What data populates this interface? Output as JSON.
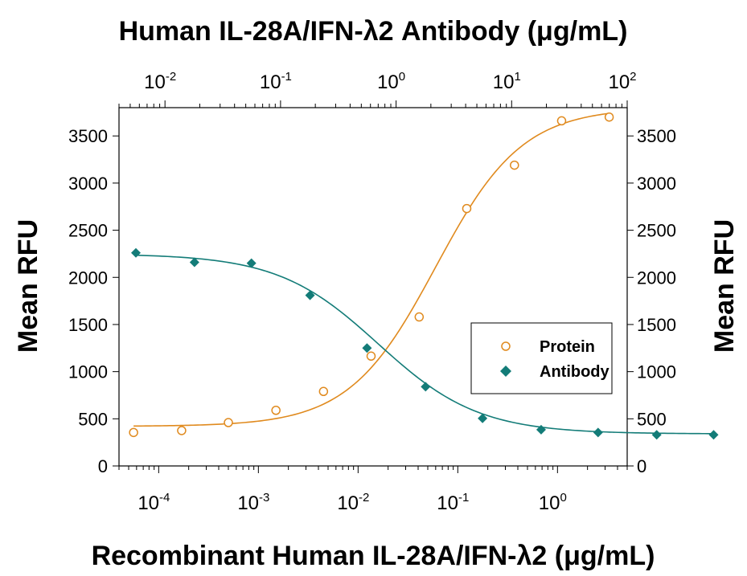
{
  "chart_data": {
    "type": "scatter",
    "top_axis_title": "Human IL-28A/IFN-λ2 Antibody (μg/mL)",
    "bottom_axis_title": "Recombinant Human IL-28A/IFN-λ2 (μg/mL)",
    "left_axis_title": "Mean RFU",
    "right_axis_title": "Mean RFU",
    "x_scale": "log",
    "bottom_tick_labels": [
      {
        "base": "10",
        "exp": "-4"
      },
      {
        "base": "10",
        "exp": "-3"
      },
      {
        "base": "10",
        "exp": "-2"
      },
      {
        "base": "10",
        "exp": "-1"
      },
      {
        "base": "10",
        "exp": "0"
      }
    ],
    "top_tick_labels": [
      {
        "base": "10",
        "exp": "-2"
      },
      {
        "base": "10",
        "exp": "-1"
      },
      {
        "base": "10",
        "exp": "0"
      },
      {
        "base": "10",
        "exp": "1"
      },
      {
        "base": "10",
        "exp": "2"
      }
    ],
    "left_tick_labels": [
      "0",
      "500",
      "1000",
      "1500",
      "2000",
      "2500",
      "3000",
      "3500"
    ],
    "right_tick_labels": [
      "0",
      "500",
      "1000",
      "1500",
      "2000",
      "2500",
      "3000",
      "3500"
    ],
    "bottom_xlim": [
      4e-05,
      5
    ],
    "top_xlim": [
      0.004,
      100
    ],
    "left_ylim": [
      0,
      3800
    ],
    "right_ylim": [
      0,
      3800
    ],
    "legend_position": "right-middle",
    "series": [
      {
        "name": "Protein",
        "axis": "bottom",
        "color": "#e08a1e",
        "marker": "open-circle",
        "x": [
          5.6e-05,
          0.00017,
          0.0005,
          0.0015,
          0.0045,
          0.0135,
          0.041,
          0.123,
          0.37,
          1.1,
          3.3
        ],
        "y": [
          355,
          375,
          460,
          590,
          790,
          1165,
          1580,
          2730,
          3190,
          3660,
          3700
        ]
      },
      {
        "name": "Antibody",
        "axis": "top",
        "color": "#137c78",
        "marker": "filled-diamond",
        "x": [
          0.0056,
          0.018,
          0.056,
          0.18,
          0.56,
          1.8,
          5.6,
          18,
          56,
          180,
          560
        ],
        "y": [
          2260,
          2160,
          2150,
          1810,
          1250,
          840,
          505,
          385,
          355,
          330,
          330
        ]
      }
    ],
    "fit_curves": [
      {
        "series": "Protein",
        "axis": "bottom",
        "bottom": 420,
        "top": 3800,
        "ec50": 0.06,
        "hill": 1.0
      },
      {
        "series": "Antibody",
        "axis": "top",
        "bottom": 340,
        "top": 2250,
        "ic50": 0.7,
        "hill": 1.0
      }
    ]
  }
}
